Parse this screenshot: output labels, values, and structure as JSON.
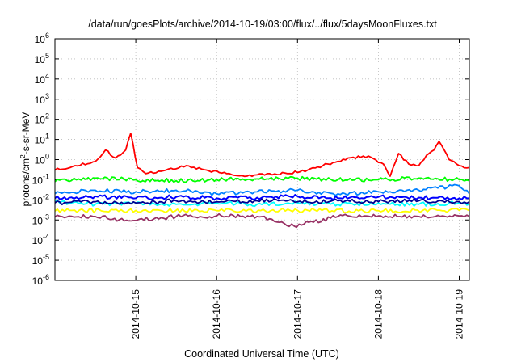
{
  "chart_data": {
    "type": "line",
    "title": "/data/run/goesPlots/archive/2014-10-19/03:00/flux/../flux/5daysMoonFluxes.txt",
    "xlabel": "Coordinated Universal Time (UTC)",
    "ylabel": {
      "base": "protons/cm",
      "sup": "2",
      "rest": "-s-sr-MeV"
    },
    "yscale": "log",
    "ylim": [
      1e-06,
      1000000.0
    ],
    "xlim": [
      "2014-10-14T00:00",
      "2014-10-19T03:00"
    ],
    "grid": true,
    "x_ticks": [
      "2014-10-15",
      "2014-10-16",
      "2014-10-17",
      "2014-10-18",
      "2014-10-19"
    ],
    "y_ticks": [
      {
        "base": "10",
        "exp": "-6"
      },
      {
        "base": "10",
        "exp": "-5"
      },
      {
        "base": "10",
        "exp": "-4"
      },
      {
        "base": "10",
        "exp": "-3"
      },
      {
        "base": "10",
        "exp": "-2"
      },
      {
        "base": "10",
        "exp": "-1"
      },
      {
        "base": "10",
        "exp": "0"
      },
      {
        "base": "10",
        "exp": "1"
      },
      {
        "base": "10",
        "exp": "2"
      },
      {
        "base": "10",
        "exp": "3"
      },
      {
        "base": "10",
        "exp": "4"
      },
      {
        "base": "10",
        "exp": "5"
      },
      {
        "base": "10",
        "exp": "6"
      }
    ],
    "series": [
      {
        "color": "#ff0000",
        "x": [
          "2014-10-14T00:00",
          "2014-10-14T06:00",
          "2014-10-14T12:00",
          "2014-10-14T15:00",
          "2014-10-14T18:00",
          "2014-10-14T21:00",
          "2014-10-14T22:30",
          "2014-10-15T00:30",
          "2014-10-15T03:00",
          "2014-10-15T09:00",
          "2014-10-15T15:00",
          "2014-10-15T21:00",
          "2014-10-16T03:00",
          "2014-10-16T09:00",
          "2014-10-16T15:00",
          "2014-10-16T21:00",
          "2014-10-17T03:00",
          "2014-10-17T09:00",
          "2014-10-17T15:00",
          "2014-10-17T21:00",
          "2014-10-18T01:30",
          "2014-10-18T03:30",
          "2014-10-18T06:00",
          "2014-10-18T09:00",
          "2014-10-18T12:00",
          "2014-10-18T15:00",
          "2014-10-18T16:30",
          "2014-10-18T18:00",
          "2014-10-18T21:00",
          "2014-10-19T00:00",
          "2014-10-19T03:00"
        ],
        "y": [
          0.3,
          0.5,
          0.8,
          3,
          1.2,
          3,
          20,
          0.4,
          0.2,
          0.3,
          0.5,
          0.3,
          0.2,
          0.15,
          0.2,
          0.2,
          0.3,
          0.6,
          1.2,
          1.5,
          0.6,
          0.15,
          2,
          0.6,
          0.5,
          2,
          3,
          8,
          1,
          0.5,
          0.4
        ]
      },
      {
        "color": "#00ff00",
        "x": [
          "2014-10-14T00:00",
          "2014-10-14T12:00",
          "2014-10-15T00:00",
          "2014-10-15T12:00",
          "2014-10-16T00:00",
          "2014-10-16T12:00",
          "2014-10-17T00:00",
          "2014-10-17T12:00",
          "2014-10-18T00:00",
          "2014-10-18T12:00",
          "2014-10-19T00:00",
          "2014-10-19T03:00"
        ],
        "y": [
          0.08,
          0.12,
          0.1,
          0.09,
          0.1,
          0.11,
          0.12,
          0.1,
          0.1,
          0.12,
          0.1,
          0.09
        ]
      },
      {
        "color": "#00ffff",
        "x": [
          "2014-10-14T00:00",
          "2014-10-14T12:00",
          "2014-10-15T00:00",
          "2014-10-15T12:00",
          "2014-10-16T00:00",
          "2014-10-16T12:00",
          "2014-10-17T00:00",
          "2014-10-17T12:00",
          "2014-10-18T00:00",
          "2014-10-18T12:00",
          "2014-10-19T00:00",
          "2014-10-19T03:00"
        ],
        "y": [
          0.008,
          0.006,
          0.007,
          0.006,
          0.007,
          0.006,
          0.007,
          0.006,
          0.007,
          0.006,
          0.007,
          0.006
        ]
      },
      {
        "color": "#0080ff",
        "x": [
          "2014-10-14T00:00",
          "2014-10-14T12:00",
          "2014-10-15T00:00",
          "2014-10-15T12:00",
          "2014-10-16T00:00",
          "2014-10-16T12:00",
          "2014-10-17T00:00",
          "2014-10-17T12:00",
          "2014-10-18T00:00",
          "2014-10-18T12:00",
          "2014-10-19T00:00",
          "2014-10-19T03:00"
        ],
        "y": [
          0.02,
          0.03,
          0.025,
          0.03,
          0.02,
          0.025,
          0.03,
          0.02,
          0.025,
          0.03,
          0.05,
          0.02
        ]
      },
      {
        "color": "#0000ff",
        "x": [
          "2014-10-14T00:00",
          "2014-10-14T12:00",
          "2014-10-15T00:00",
          "2014-10-15T12:00",
          "2014-10-16T00:00",
          "2014-10-16T12:00",
          "2014-10-17T00:00",
          "2014-10-17T12:00",
          "2014-10-18T00:00",
          "2014-10-18T12:00",
          "2014-10-19T00:00",
          "2014-10-19T03:00"
        ],
        "y": [
          0.012,
          0.015,
          0.012,
          0.014,
          0.012,
          0.013,
          0.015,
          0.012,
          0.014,
          0.013,
          0.012,
          0.012
        ]
      },
      {
        "color": "#000090",
        "x": [
          "2014-10-14T00:00",
          "2014-10-14T12:00",
          "2014-10-15T00:00",
          "2014-10-15T12:00",
          "2014-10-16T00:00",
          "2014-10-16T12:00",
          "2014-10-17T00:00",
          "2014-10-17T12:00",
          "2014-10-18T00:00",
          "2014-10-18T12:00",
          "2014-10-19T00:00",
          "2014-10-19T03:00"
        ],
        "y": [
          0.007,
          0.008,
          0.007,
          0.009,
          0.008,
          0.009,
          0.008,
          0.009,
          0.008,
          0.009,
          0.008,
          0.008
        ]
      },
      {
        "color": "#ffff00",
        "x": [
          "2014-10-14T00:00",
          "2014-10-15T00:00",
          "2014-10-16T00:00",
          "2014-10-17T00:00",
          "2014-10-18T00:00",
          "2014-10-19T00:00",
          "2014-10-19T03:00"
        ],
        "y": [
          0.0028,
          0.003,
          0.0029,
          0.003,
          0.0029,
          0.003,
          0.0029
        ]
      },
      {
        "color": "#993366",
        "x": [
          "2014-10-14T00:00",
          "2014-10-14T12:00",
          "2014-10-14T22:00",
          "2014-10-15T12:00",
          "2014-10-16T00:00",
          "2014-10-16T12:00",
          "2014-10-16T23:00",
          "2014-10-17T12:00",
          "2014-10-18T00:00",
          "2014-10-18T12:00",
          "2014-10-19T00:00",
          "2014-10-19T03:00"
        ],
        "y": [
          0.0014,
          0.0015,
          0.0009,
          0.0015,
          0.0016,
          0.0015,
          0.0005,
          0.0015,
          0.0016,
          0.0015,
          0.0016,
          0.0015
        ]
      }
    ]
  }
}
